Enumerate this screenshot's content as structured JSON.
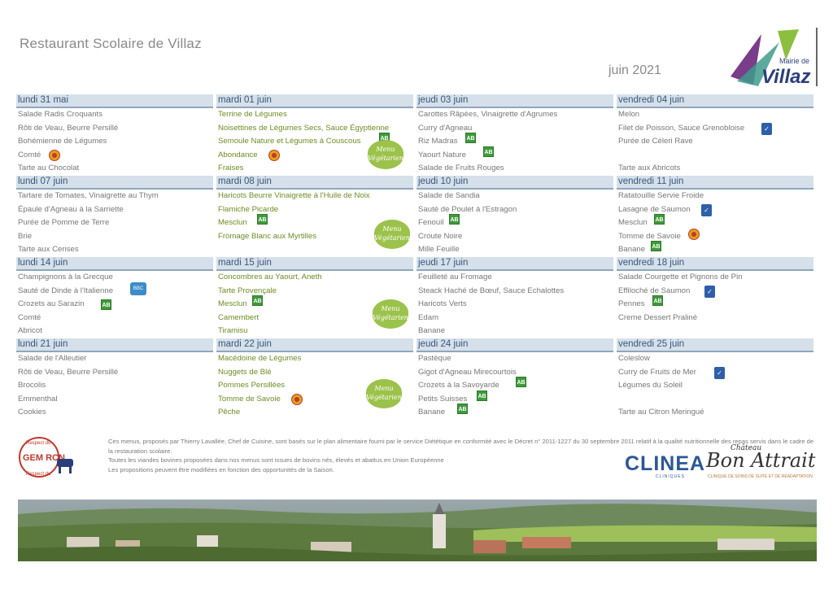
{
  "header": {
    "title": "Restaurant Scolaire de Villaz",
    "month": "juin 2021",
    "logo_top": "Mairie de",
    "logo_main": "Villaz"
  },
  "weeks": [
    [
      {
        "date": "lundi 31 mai",
        "items": [
          "Salade Radis Croquants",
          "Rôti de Veau, Beurre Persillé",
          "Bohémienne de Légumes",
          "Comté",
          "Tarte au Chocolat"
        ]
      },
      {
        "date": "mardi 01 juin",
        "items": [
          "Terrine de Légumes",
          "Noisettines de Légumes Secs, Sauce Égyptienne",
          "Semoule Nature et Légumes à Couscous",
          "Abondance",
          "Fraises"
        ]
      },
      {
        "date": "jeudi 03 juin",
        "items": [
          "Carottes Râpées, Vinaigrette d'Agrumes",
          "Curry d'Agneau",
          "Riz Madras",
          "Yaourt Nature",
          "Salade de Fruits Rouges"
        ]
      },
      {
        "date": "vendredi 04 juin",
        "items": [
          "Melon",
          "Filet de Poisson, Sauce Grenobloise",
          "Purée de Céleri Rave",
          "",
          "Tarte aux Abricots"
        ]
      }
    ],
    [
      {
        "date": "lundi 07 juin",
        "items": [
          "Tartare de Tomates, Vinaigrette au Thym",
          "Épaule d'Agneau à la Sarriette",
          "Purée de Pomme de Terre",
          "Brie",
          "Tarte aux Cerises"
        ]
      },
      {
        "date": "mardi 08 juin",
        "items": [
          "Haricots Beurre Vinaigrette à l'Huile de Noix",
          "Flamiche Picarde",
          "Mesclun",
          "Fromage Blanc aux Myrtilles",
          ""
        ]
      },
      {
        "date": "jeudi 10 juin",
        "items": [
          "Salade de Sandia",
          "Sauté de Poulet à l'Estragon",
          "Fenouil",
          "Croute Noire",
          "Mille Feuille"
        ]
      },
      {
        "date": "vendredi 11 juin",
        "items": [
          "Ratatouille Servie Froide",
          "Lasagne de Saumon",
          "Mesclun",
          "Tomme de Savoie",
          "Banane"
        ]
      }
    ],
    [
      {
        "date": "lundi 14 juin",
        "items": [
          "Champignons à la Grecque",
          "Sauté de Dinde à l'Italienne",
          "Crozets au Sarazin",
          "Comté",
          "Abricot"
        ]
      },
      {
        "date": "mardi 15 juin",
        "items": [
          "Concombres au Yaourt, Aneth",
          "Tarte Provençale",
          "Mesclun",
          "Camembert",
          "Tiramisu"
        ]
      },
      {
        "date": "jeudi 17 juin",
        "items": [
          "Feuilleté au Fromage",
          "Steack Haché de Bœuf, Sauce Echalottes",
          " Haricots Verts",
          "Edam",
          "Banane"
        ]
      },
      {
        "date": "vendredi 18 juin",
        "items": [
          "Salade Courgette et Pignons de Pin",
          "Effiloché de Saumon",
          "Pennes",
          "Creme Dessert Praliné",
          ""
        ]
      }
    ],
    [
      {
        "date": "lundi 21 juin",
        "items": [
          "Salade de l'Alleutier",
          "Rôti de Veau, Beurre Persillé",
          "Brocolis",
          "Emmenthal",
          "Cookies"
        ]
      },
      {
        "date": "mardi 22 juin",
        "items": [
          "Macédoine de Légumes",
          "Nuggets de Blé",
          "Pommes Persillées",
          "Tomme de Savoie",
          "Pêche"
        ]
      },
      {
        "date": "jeudi 24 juin",
        "items": [
          "Pastèque",
          "Gigot d'Agneau Mirecourtois",
          "Crozets à la Savoyarde",
          "Petits Suisses",
          "Banane"
        ]
      },
      {
        "date": "vendredi 25 juin",
        "items": [
          "Coleslow",
          "Curry de Fruits de Mer",
          "Légumes du Soleil",
          "",
          "Tarte au Citron Meringué"
        ]
      }
    ]
  ],
  "labels": {
    "ab": "AB",
    "veg_line1": "Menu",
    "veg_line2": "Végétarien",
    "gem_top": "Respect du",
    "gem_mid": "GEM RCN",
    "gem_bottom": "Respect du",
    "blanc": "BBC"
  },
  "footnote": [
    "Ces menus, proposés par Thierry Lavallée, Chef de Cuisine, sont basés sur le plan alimentaire fourni par le service Diététique en conformité avec le Décret n° 2011-1227 du 30 septembre 2011 relatif à la qualité nutritionnelle des repas servis dans le cadre de la restauration scolaire.",
    "Toutes les viandes bovines proposées dans nos menus sont issues de bovins nés, élevés et abattus en Union Européenne",
    "Les propositions peuvent être modifiées en fonction des opportunités de la Saison."
  ],
  "partners": {
    "clinea": "CLINEA",
    "clinea_sub": "CLINIQUES",
    "bon_attrait": "Bon Attrait",
    "chateau": "Château",
    "bon_attrait_sub": "CLINIQUE DE SOINS DE SUITE ET DE RÉADAPTATION"
  },
  "colors": {
    "header_band": "#d5e0ea",
    "header_line": "#8fa6bd",
    "header_text": "#38577a",
    "green_text": "#6d8c23",
    "ab_green": "#3f9a3a"
  }
}
